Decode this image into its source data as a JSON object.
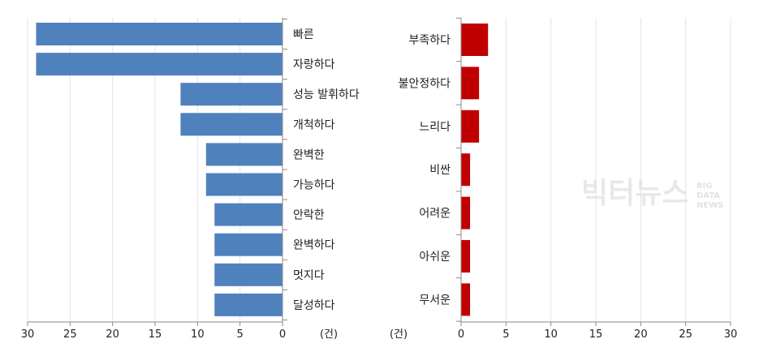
{
  "chart_data": [
    {
      "type": "bar",
      "orientation": "horizontal",
      "direction": "right-to-left",
      "categories": [
        "빠른",
        "자랑하다",
        "성능 발휘하다",
        "개척하다",
        "완벽한",
        "가능하다",
        "안락한",
        "완벽하다",
        "멋지다",
        "달성하다"
      ],
      "values": [
        29,
        29,
        12,
        12,
        9,
        9,
        8,
        8,
        8,
        8
      ],
      "xlim": [
        0,
        30
      ],
      "ticks": [
        "30",
        "25",
        "20",
        "15",
        "10",
        "5",
        "0"
      ],
      "unit_label": "(건)",
      "color": "#4f81bd",
      "grid": true
    },
    {
      "type": "bar",
      "orientation": "horizontal",
      "direction": "left-to-right",
      "categories": [
        "부족하다",
        "불안정하다",
        "느리다",
        "비싼",
        "어려운",
        "아쉬운",
        "무서운"
      ],
      "values": [
        3,
        2,
        2,
        1,
        1,
        1,
        1
      ],
      "xlim": [
        0,
        30
      ],
      "ticks": [
        "0",
        "5",
        "10",
        "15",
        "20",
        "25",
        "30"
      ],
      "unit_label": "(건)",
      "color": "#c00000",
      "grid": true
    }
  ],
  "watermark": {
    "main": "빅터뉴스",
    "sub": [
      "BIG",
      "DATA",
      "NEWS"
    ]
  }
}
